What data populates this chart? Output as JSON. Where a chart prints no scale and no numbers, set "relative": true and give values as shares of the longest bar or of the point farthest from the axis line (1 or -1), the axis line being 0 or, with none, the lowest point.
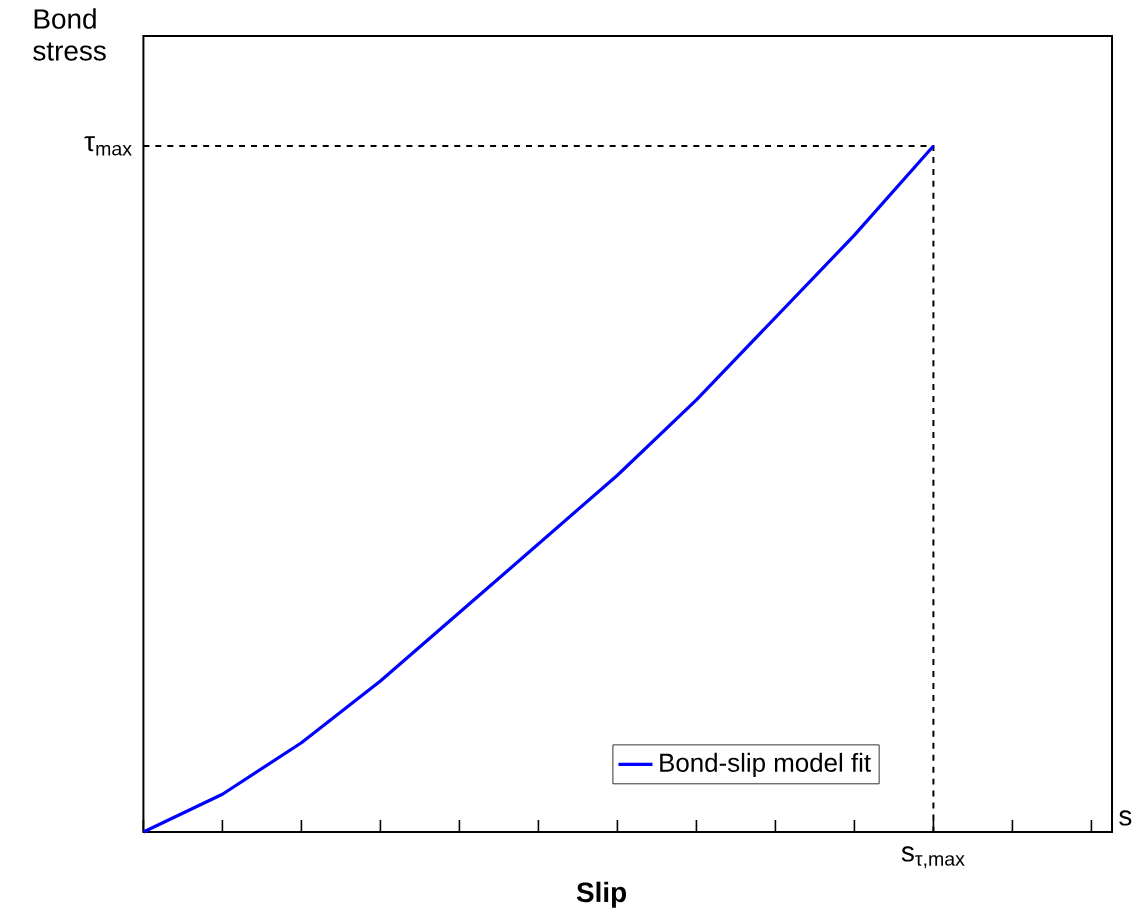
{
  "chart_data": {
    "type": "line",
    "relative": true,
    "xlabel": "Slip",
    "ylabel": "Bond stress",
    "categories": [
      null,
      null,
      null,
      null,
      null,
      null,
      null,
      null,
      null,
      null,
      null,
      null,
      null
    ],
    "legend": "bottom right",
    "grid": false,
    "marker": "none",
    "series": [
      {
        "name": "Bond-slip model fit",
        "color": "#0000ff",
        "line_style": "solid",
        "values": [
          0,
          0.055,
          0.13,
          0.22,
          0.32,
          0.42,
          0.52,
          0.63,
          0.75,
          0.87,
          1,
          null,
          null
        ]
      }
    ],
    "ref_lines": [
      {
        "axis": "y",
        "value": 1,
        "label": "τ$_{max}$",
        "color": "#000000",
        "line_style": "dashed"
      }
    ],
    "annotations": [
      "s$_{τ,max}$",
      "s"
    ]
  }
}
